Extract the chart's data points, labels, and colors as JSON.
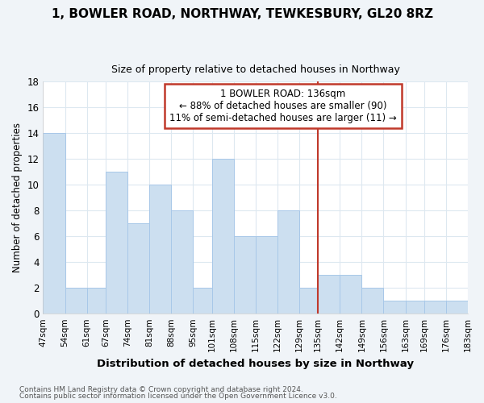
{
  "title": "1, BOWLER ROAD, NORTHWAY, TEWKESBURY, GL20 8RZ",
  "subtitle": "Size of property relative to detached houses in Northway",
  "xlabel": "Distribution of detached houses by size in Northway",
  "ylabel": "Number of detached properties",
  "bin_edges": [
    47,
    54,
    61,
    67,
    74,
    81,
    88,
    95,
    101,
    108,
    115,
    122,
    129,
    135,
    142,
    149,
    156,
    163,
    169,
    176,
    183
  ],
  "counts": [
    14,
    2,
    2,
    11,
    7,
    10,
    8,
    2,
    12,
    6,
    6,
    8,
    2,
    3,
    3,
    2,
    1,
    1,
    1,
    1
  ],
  "bar_color": "#ccdff0",
  "bar_edgecolor": "#a8c8e8",
  "property_line_x": 135,
  "annotation_title": "1 BOWLER ROAD: 136sqm",
  "annotation_line1": "← 88% of detached houses are smaller (90)",
  "annotation_line2": "11% of semi-detached houses are larger (11) →",
  "tick_labels": [
    "47sqm",
    "54sqm",
    "61sqm",
    "67sqm",
    "74sqm",
    "81sqm",
    "88sqm",
    "95sqm",
    "101sqm",
    "108sqm",
    "115sqm",
    "122sqm",
    "129sqm",
    "135sqm",
    "142sqm",
    "149sqm",
    "156sqm",
    "163sqm",
    "169sqm",
    "176sqm",
    "183sqm"
  ],
  "ylim": [
    0,
    18
  ],
  "yticks": [
    0,
    2,
    4,
    6,
    8,
    10,
    12,
    14,
    16,
    18
  ],
  "footer1": "Contains HM Land Registry data © Crown copyright and database right 2024.",
  "footer2": "Contains public sector information licensed under the Open Government Licence v3.0.",
  "grid_color": "#dde8f0",
  "plot_bg": "#ffffff",
  "fig_bg": "#f0f4f8"
}
